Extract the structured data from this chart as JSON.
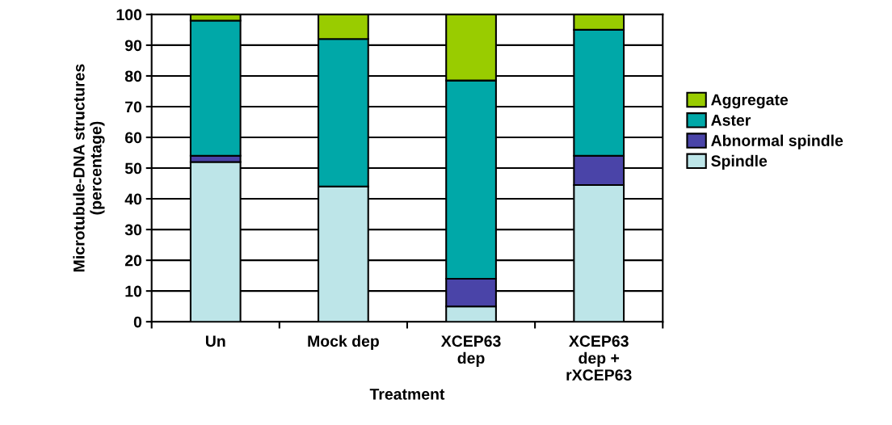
{
  "chart_data": {
    "type": "bar",
    "stacked": true,
    "xlabel": "Treatment",
    "ylabel": "Microtubule-DNA structures\n(percentage)",
    "categories": [
      "Un",
      "Mock dep",
      "XCEP63\ndep",
      "XCEP63\ndep +\nrXCEP63"
    ],
    "series": [
      {
        "name": "Spindle",
        "color": "#bde5e8",
        "values": [
          52,
          44,
          5,
          44.5
        ]
      },
      {
        "name": "Abnormal spindle",
        "color": "#4a44a8",
        "values": [
          2,
          null,
          9,
          9.5
        ]
      },
      {
        "name": "Aster",
        "color": "#00a8a8",
        "values": [
          44,
          48,
          64.5,
          41
        ]
      },
      {
        "name": "Aggregate",
        "color": "#99cc00",
        "values": [
          2,
          8,
          21.5,
          5
        ]
      }
    ],
    "ylim": [
      0,
      100
    ],
    "yticks": [
      0,
      10,
      20,
      30,
      40,
      50,
      60,
      70,
      80,
      90,
      100
    ],
    "grid": "y",
    "legend": "right"
  }
}
